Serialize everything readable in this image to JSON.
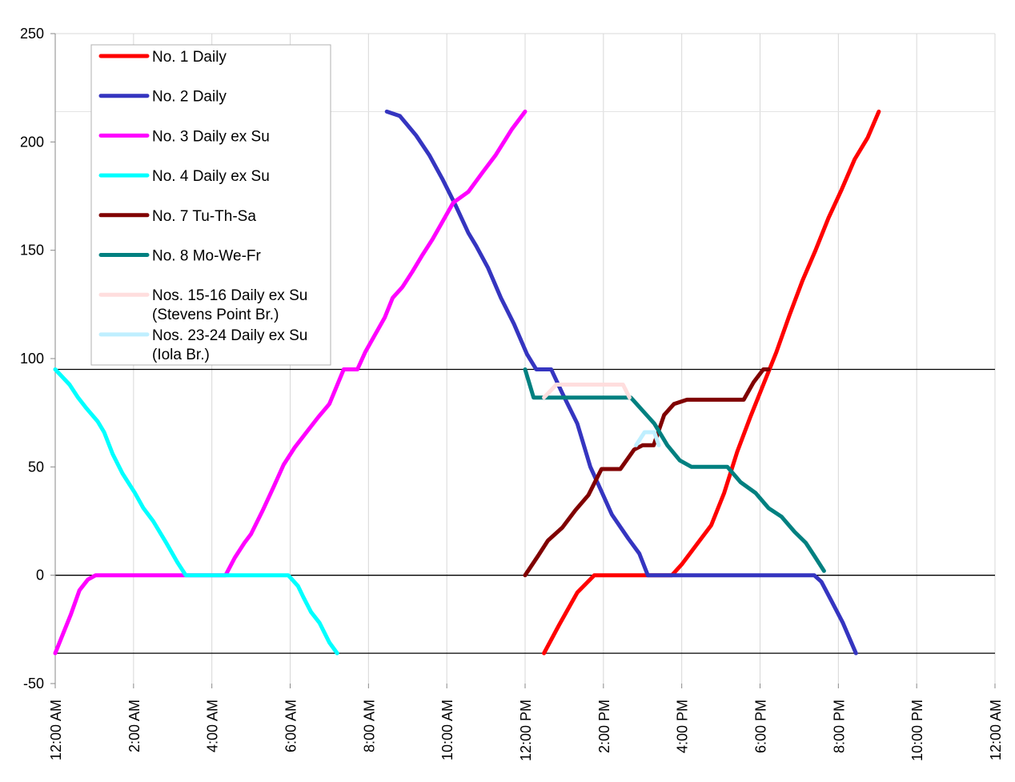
{
  "chart_data": {
    "type": "line",
    "x_unit": "minutes after 12:00 AM",
    "xlim": [
      0,
      1440
    ],
    "ylim": [
      -50,
      250
    ],
    "y_ticks": [
      250,
      200,
      150,
      100,
      50,
      0,
      -50
    ],
    "x_ticks": [
      {
        "value": 0,
        "label": "12:00 AM"
      },
      {
        "value": 120,
        "label": "2:00 AM"
      },
      {
        "value": 240,
        "label": "4:00 AM"
      },
      {
        "value": 360,
        "label": "6:00 AM"
      },
      {
        "value": 480,
        "label": "8:00 AM"
      },
      {
        "value": 600,
        "label": "10:00 AM"
      },
      {
        "value": 720,
        "label": "12:00 PM"
      },
      {
        "value": 840,
        "label": "2:00 PM"
      },
      {
        "value": 960,
        "label": "4:00 PM"
      },
      {
        "value": 1080,
        "label": "6:00 PM"
      },
      {
        "value": 1200,
        "label": "8:00 PM"
      },
      {
        "value": 1320,
        "label": "10:00 PM"
      },
      {
        "value": 1440,
        "label": "12:00 AM"
      }
    ],
    "reference_lines": [
      95,
      0,
      -36
    ],
    "grid": "vertical gridlines",
    "legend_position": "top-left",
    "series": [
      {
        "name": "No. 1 Daily",
        "color": "#ff0000",
        "points": [
          [
            749,
            -36
          ],
          [
            772,
            -23
          ],
          [
            800,
            -8
          ],
          [
            826,
            0
          ],
          [
            870,
            0
          ],
          [
            920,
            0
          ],
          [
            945,
            0
          ],
          [
            960,
            5
          ],
          [
            985,
            15
          ],
          [
            1005,
            23
          ],
          [
            1025,
            38
          ],
          [
            1045,
            57
          ],
          [
            1065,
            73
          ],
          [
            1085,
            88
          ],
          [
            1105,
            103
          ],
          [
            1125,
            120
          ],
          [
            1145,
            136
          ],
          [
            1165,
            150
          ],
          [
            1185,
            165
          ],
          [
            1205,
            178
          ],
          [
            1225,
            192
          ],
          [
            1245,
            202
          ],
          [
            1262,
            214
          ]
        ]
      },
      {
        "name": "No. 2 Daily",
        "color": "#3535c0",
        "points": [
          [
            508,
            214
          ],
          [
            528,
            212
          ],
          [
            553,
            203
          ],
          [
            573,
            194
          ],
          [
            593,
            183
          ],
          [
            613,
            171
          ],
          [
            633,
            158
          ],
          [
            645,
            152
          ],
          [
            663,
            142
          ],
          [
            683,
            128
          ],
          [
            703,
            116
          ],
          [
            723,
            102
          ],
          [
            737,
            95
          ],
          [
            760,
            95
          ],
          [
            777,
            84
          ],
          [
            800,
            70
          ],
          [
            820,
            50
          ],
          [
            835,
            40
          ],
          [
            853,
            28
          ],
          [
            878,
            17
          ],
          [
            895,
            10
          ],
          [
            908,
            0
          ],
          [
            930,
            0
          ],
          [
            1000,
            0
          ],
          [
            1070,
            0
          ],
          [
            1163,
            0
          ],
          [
            1174,
            -3
          ],
          [
            1188,
            -11
          ],
          [
            1207,
            -22
          ],
          [
            1227,
            -36
          ]
        ]
      },
      {
        "name": "No. 3 Daily ex Su",
        "color": "#ff00ff",
        "points": [
          [
            0,
            -36
          ],
          [
            12,
            -27
          ],
          [
            24,
            -18
          ],
          [
            37,
            -7
          ],
          [
            50,
            -2
          ],
          [
            62,
            0
          ],
          [
            100,
            0
          ],
          [
            145,
            0
          ],
          [
            200,
            0
          ],
          [
            261,
            0
          ],
          [
            275,
            8
          ],
          [
            290,
            15
          ],
          [
            300,
            19
          ],
          [
            318,
            30
          ],
          [
            335,
            41
          ],
          [
            350,
            51
          ],
          [
            367,
            59
          ],
          [
            385,
            66
          ],
          [
            403,
            73
          ],
          [
            420,
            79
          ],
          [
            442,
            95
          ],
          [
            463,
            95
          ],
          [
            475,
            103
          ],
          [
            490,
            111
          ],
          [
            505,
            119
          ],
          [
            517,
            128
          ],
          [
            532,
            133
          ],
          [
            547,
            140
          ],
          [
            563,
            148
          ],
          [
            578,
            155
          ],
          [
            593,
            163
          ],
          [
            610,
            172
          ],
          [
            633,
            177
          ],
          [
            655,
            186
          ],
          [
            675,
            194
          ],
          [
            700,
            206
          ],
          [
            720,
            214
          ]
        ]
      },
      {
        "name": "No. 4 Daily ex Su",
        "color": "#00ffff",
        "points": [
          [
            0,
            95
          ],
          [
            22,
            88
          ],
          [
            35,
            82
          ],
          [
            48,
            77
          ],
          [
            65,
            71
          ],
          [
            75,
            66
          ],
          [
            88,
            56
          ],
          [
            103,
            47
          ],
          [
            122,
            38
          ],
          [
            135,
            31
          ],
          [
            150,
            25
          ],
          [
            170,
            15
          ],
          [
            187,
            6
          ],
          [
            200,
            0
          ],
          [
            240,
            0
          ],
          [
            300,
            0
          ],
          [
            357,
            0
          ],
          [
            372,
            -5
          ],
          [
            380,
            -10
          ],
          [
            392,
            -17
          ],
          [
            405,
            -22
          ],
          [
            420,
            -31
          ],
          [
            432,
            -36
          ]
        ]
      },
      {
        "name": "No. 7 Tu-Th-Sa",
        "color": "#800000",
        "points": [
          [
            720,
            0
          ],
          [
            740,
            9
          ],
          [
            755,
            16
          ],
          [
            777,
            22
          ],
          [
            797,
            30
          ],
          [
            817,
            37
          ],
          [
            837,
            49
          ],
          [
            866,
            49
          ],
          [
            887,
            58
          ],
          [
            900,
            60
          ],
          [
            917,
            60
          ],
          [
            933,
            74
          ],
          [
            948,
            79
          ],
          [
            968,
            81
          ],
          [
            1020,
            81
          ],
          [
            1055,
            81
          ],
          [
            1070,
            89
          ],
          [
            1085,
            95
          ],
          [
            1093,
            95
          ]
        ]
      },
      {
        "name": "No. 8 Mo-We-Fr",
        "color": "#008080",
        "points": [
          [
            720,
            95
          ],
          [
            733,
            82
          ],
          [
            755,
            82
          ],
          [
            800,
            82
          ],
          [
            840,
            82
          ],
          [
            882,
            82
          ],
          [
            900,
            76
          ],
          [
            918,
            70
          ],
          [
            938,
            60
          ],
          [
            957,
            53
          ],
          [
            975,
            50
          ],
          [
            1000,
            50
          ],
          [
            1030,
            50
          ],
          [
            1050,
            43
          ],
          [
            1073,
            38
          ],
          [
            1093,
            31
          ],
          [
            1113,
            27
          ],
          [
            1133,
            20
          ],
          [
            1150,
            15
          ],
          [
            1163,
            9
          ],
          [
            1178,
            2
          ]
        ]
      },
      {
        "name": "Nos. 15-16 Daily ex Su (Stevens Point Br.)",
        "color": "#ffdede",
        "points": [
          [
            749,
            82
          ],
          [
            768,
            88
          ],
          [
            820,
            88
          ],
          [
            870,
            88
          ],
          [
            880,
            82
          ]
        ]
      },
      {
        "name": "Nos. 23-24 Daily ex Su (Iola Br.)",
        "color": "#bfefff",
        "points": [
          [
            890,
            60
          ],
          [
            903,
            66
          ],
          [
            918,
            66
          ],
          [
            925,
            60
          ]
        ]
      }
    ],
    "legend": [
      {
        "label": "No. 1 Daily",
        "color": "#ff0000"
      },
      {
        "label": "No. 2 Daily",
        "color": "#3535c0"
      },
      {
        "label": "No. 3 Daily ex Su",
        "color": "#ff00ff"
      },
      {
        "label": "No. 4 Daily ex Su",
        "color": "#00ffff"
      },
      {
        "label": "No. 7 Tu-Th-Sa",
        "color": "#800000"
      },
      {
        "label": "No. 8 Mo-We-Fr",
        "color": "#008080"
      },
      {
        "label": "Nos. 15-16 Daily ex Su",
        "label2": "(Stevens Point Br.)",
        "color": "#ffdede"
      },
      {
        "label": "Nos. 23-24 Daily ex Su",
        "label2": "(Iola Br.)",
        "color": "#bfefff"
      }
    ]
  }
}
